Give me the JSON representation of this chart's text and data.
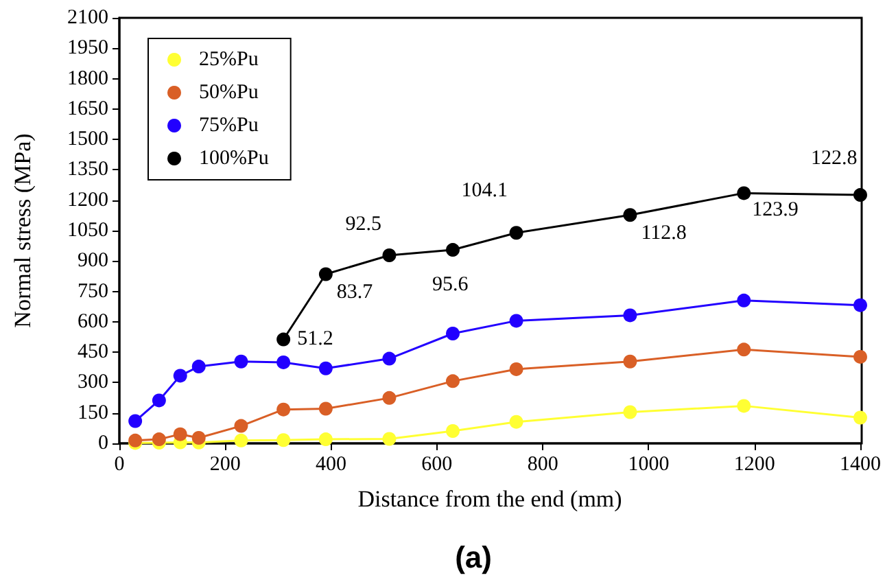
{
  "chart_data": {
    "type": "line",
    "title": "(a)",
    "xlabel": "Distance from the end (mm)",
    "ylabel": "Normal stress (MPa)",
    "x": [
      30,
      75,
      115,
      150,
      230,
      310,
      390,
      510,
      630,
      750,
      965,
      1180,
      1400
    ],
    "series": [
      {
        "name": "25%Pu",
        "color": "#ffff33",
        "values": [
          2,
          3,
          5,
          4,
          14,
          16,
          20,
          22,
          61,
          106,
          154,
          185,
          127
        ]
      },
      {
        "name": "50%Pu",
        "color": "#d95f26",
        "values": [
          14,
          20,
          45,
          27,
          86,
          167,
          171,
          224,
          307,
          366,
          404,
          463,
          427
        ]
      },
      {
        "name": "75%Pu",
        "color": "#2200ff",
        "values": [
          110,
          212,
          334,
          379,
          404,
          400,
          370,
          418,
          542,
          605,
          632,
          705,
          682
        ]
      },
      {
        "name": "100%Pu",
        "color": "#000000",
        "values": [
          null,
          null,
          null,
          null,
          null,
          513,
          835,
          928,
          955,
          1039,
          1127,
          1235,
          1226
        ]
      }
    ],
    "annotations": [
      {
        "text": "51.2",
        "x": 310,
        "y": 513
      },
      {
        "text": "83.7",
        "x": 390,
        "y": 835
      },
      {
        "text": "92.5",
        "x": 510,
        "y": 928
      },
      {
        "text": "95.6",
        "x": 630,
        "y": 955
      },
      {
        "text": "104.1",
        "x": 750,
        "y": 1039
      },
      {
        "text": "112.8",
        "x": 965,
        "y": 1127
      },
      {
        "text": "123.9",
        "x": 1180,
        "y": 1235
      },
      {
        "text": "122.8",
        "x": 1400,
        "y": 1226
      }
    ],
    "xlim": [
      0,
      1400
    ],
    "xticks": [
      0,
      200,
      400,
      600,
      800,
      1000,
      1200,
      1400
    ],
    "ylim": [
      0,
      2100
    ],
    "yticks": [
      0,
      150,
      300,
      450,
      600,
      750,
      900,
      1050,
      1200,
      1350,
      1500,
      1650,
      1800,
      1950,
      2100
    ],
    "grid": false,
    "legend": "top left",
    "marker": "circle",
    "line_style": "solid"
  }
}
